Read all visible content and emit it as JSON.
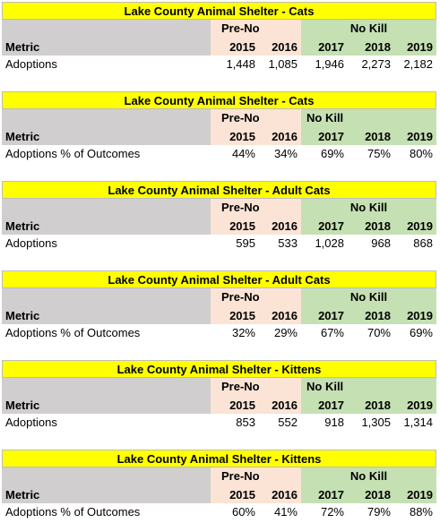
{
  "tables": [
    {
      "title": "Lake County Animal Shelter - Cats",
      "metric_header": "Metric",
      "pre_label": "Pre-No Kill",
      "nokill_label": "No Kill",
      "nokill_align": "center",
      "years": [
        "2015",
        "2016",
        "2017",
        "2018",
        "2019"
      ],
      "row_label": "Adoptions",
      "values": [
        "1,448",
        "1,085",
        "1,946",
        "2,273",
        "2,182"
      ]
    },
    {
      "title": "Lake County Animal Shelter - Cats",
      "metric_header": "Metric",
      "pre_label": "Pre-No Kill",
      "nokill_label": "No Kill",
      "nokill_align": "left",
      "years": [
        "2015",
        "2016",
        "2017",
        "2018",
        "2019"
      ],
      "row_label": "Adoptions % of Outcomes",
      "values": [
        "44%",
        "34%",
        "69%",
        "75%",
        "80%"
      ]
    },
    {
      "title": "Lake County Animal Shelter - Adult Cats",
      "metric_header": "Metric",
      "pre_label": "Pre-No Kill",
      "nokill_label": "No Kill",
      "nokill_align": "center",
      "years": [
        "2015",
        "2016",
        "2017",
        "2018",
        "2019"
      ],
      "row_label": "Adoptions",
      "values": [
        "595",
        "533",
        "1,028",
        "968",
        "868"
      ]
    },
    {
      "title": "Lake County Animal Shelter - Adult Cats",
      "metric_header": "Metric",
      "pre_label": "Pre-No Kill",
      "nokill_label": "No Kill",
      "nokill_align": "center",
      "years": [
        "2015",
        "2016",
        "2017",
        "2018",
        "2019"
      ],
      "row_label": "Adoptions % of Outcomes",
      "values": [
        "32%",
        "29%",
        "67%",
        "70%",
        "69%"
      ]
    },
    {
      "title": "Lake County Animal Shelter - Kittens",
      "metric_header": "Metric",
      "pre_label": "Pre-No Kill",
      "nokill_label": "No Kill",
      "nokill_align": "left",
      "years": [
        "2015",
        "2016",
        "2017",
        "2018",
        "2019"
      ],
      "row_label": "Adoptions",
      "values": [
        "853",
        "552",
        "918",
        "1,305",
        "1,314"
      ]
    },
    {
      "title": "Lake County Animal Shelter - Kittens",
      "metric_header": "Metric",
      "pre_label": "Pre-No Kill",
      "nokill_label": "No Kill",
      "nokill_align": "center",
      "years": [
        "2015",
        "2016",
        "2017",
        "2018",
        "2019"
      ],
      "row_label": "Adoptions % of Outcomes",
      "values": [
        "60%",
        "41%",
        "72%",
        "79%",
        "88%"
      ]
    }
  ],
  "colors": {
    "title_bg": "#ffff00",
    "metric_bg": "#d0cece",
    "pre_bg": "#fbe4d5",
    "nokill_bg": "#c5e0b3"
  }
}
